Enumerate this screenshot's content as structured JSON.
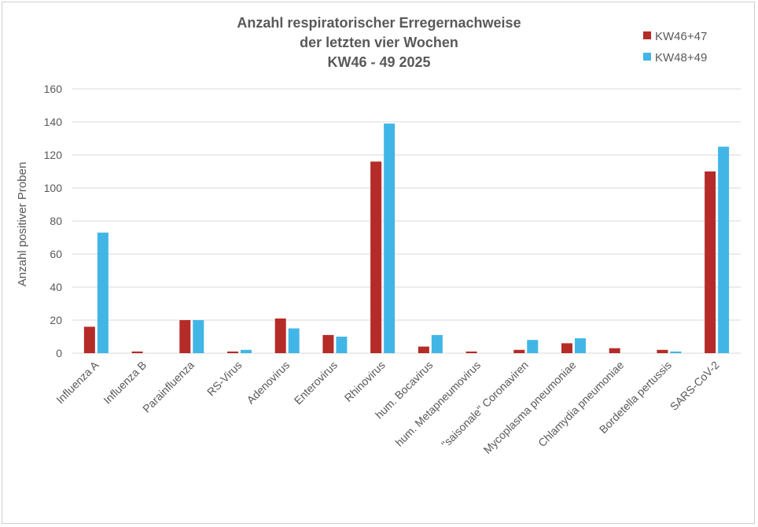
{
  "chart_data": {
    "type": "bar",
    "title": [
      "Anzahl respiratorischer Erregernachweise",
      "der letzten vier Wochen",
      "KW46 - 49 2025"
    ],
    "xlabel": "",
    "ylabel": "Anzahl positiver Proben",
    "ylim": [
      0,
      160
    ],
    "yticks": [
      0,
      20,
      40,
      60,
      80,
      100,
      120,
      140,
      160
    ],
    "grid": true,
    "legend_position": "top-right",
    "categories": [
      "Influenza A",
      "Influenza B",
      "Parainfluenza",
      "RS-Virus",
      "Adenovirus",
      "Enterovirus",
      "Rhinovirus",
      "hum. Bocavirus",
      "hum. Metapneumovirus",
      "\"saisonale\" Coronaviren",
      "Mycoplasma pneumoniae",
      "Chlamydia pneumoniae",
      "Bordetella pertussis",
      "SARS-CoV-2"
    ],
    "series": [
      {
        "name": "KW46+47",
        "color": "#b52b27",
        "values": [
          16,
          1,
          20,
          1,
          21,
          11,
          116,
          4,
          1,
          2,
          6,
          3,
          2,
          110
        ]
      },
      {
        "name": "KW48+49",
        "color": "#41b6e6",
        "values": [
          73,
          0,
          20,
          2,
          15,
          10,
          139,
          11,
          0,
          8,
          9,
          0,
          1,
          125
        ]
      }
    ]
  }
}
